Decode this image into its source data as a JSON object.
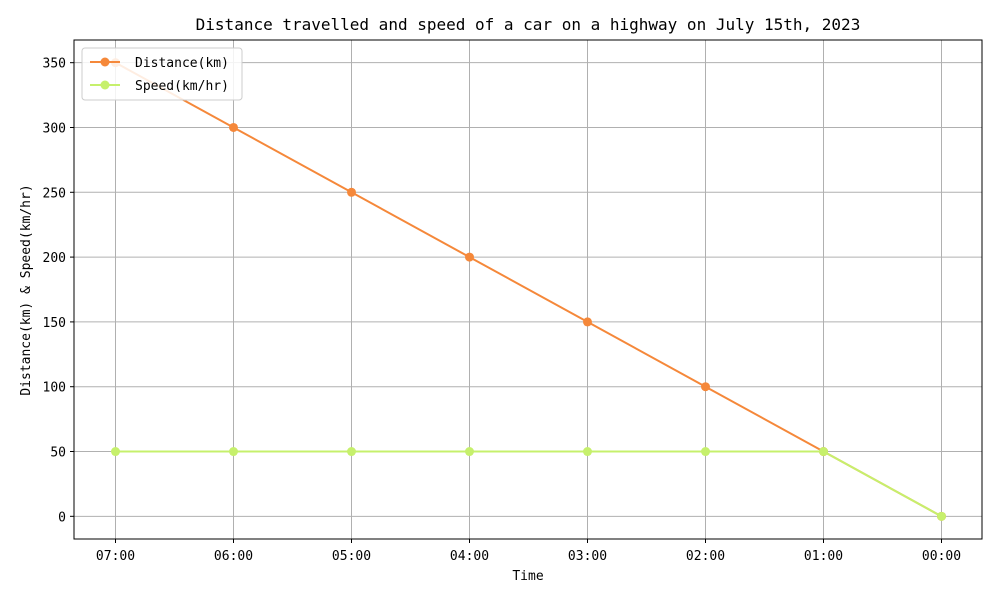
{
  "chart_data": {
    "type": "line",
    "title": "Distance travelled and speed of a car on a highway on July 15th, 2023",
    "xlabel": "Time",
    "ylabel": "Distance(km) & Speed(km/hr)",
    "categories": [
      "07:00",
      "06:00",
      "05:00",
      "04:00",
      "03:00",
      "02:00",
      "01:00",
      "00:00"
    ],
    "series": [
      {
        "name": "Distance(km)",
        "color": "#f5883a",
        "values": [
          350,
          300,
          250,
          200,
          150,
          100,
          50,
          0
        ]
      },
      {
        "name": "Speed(km/hr)",
        "color": "#c6f06c",
        "values": [
          50,
          50,
          50,
          50,
          50,
          50,
          50,
          0
        ]
      }
    ],
    "yticks": [
      0,
      50,
      100,
      150,
      200,
      250,
      300,
      350
    ],
    "ylim": [
      -17.5,
      367.5
    ],
    "grid": true,
    "legend_position": "top-left",
    "marker": "circle"
  }
}
